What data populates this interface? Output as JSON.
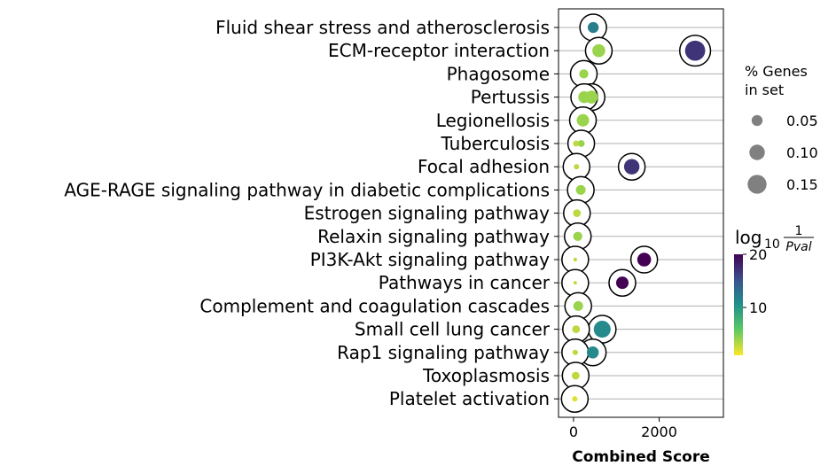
{
  "chart_data": {
    "type": "scatter",
    "xlabel": "Combined Score",
    "xlim": [
      -350,
      3500
    ],
    "xticks": [
      0,
      2000
    ],
    "xtick_labels": [
      "0",
      "2000"
    ],
    "terms": [
      "Fluid shear stress and atherosclerosis",
      "ECM-receptor interaction",
      "Phagosome",
      "Pertussis",
      "Legionellosis",
      "Tuberculosis",
      "Focal adhesion",
      "AGE-RAGE signaling pathway in diabetic complications",
      "Estrogen signaling pathway",
      "Relaxin signaling pathway",
      "PI3K-Akt signaling pathway",
      "Pathways in cancer",
      "Complement and coagulation cascades",
      "Small cell lung cancer",
      "Rap1 signaling pathway",
      "Toxoplasmosis",
      "Platelet activation"
    ],
    "points": [
      {
        "term": "Fluid shear stress and atherosclerosis",
        "x": 460,
        "pct_genes": 0.05,
        "neglog10p": 12,
        "highlighted": true
      },
      {
        "term": "ECM-receptor interaction",
        "x": 2840,
        "pct_genes": 0.17,
        "neglog10p": 17,
        "highlighted": true
      },
      {
        "term": "ECM-receptor interaction",
        "x": 590,
        "pct_genes": 0.07,
        "neglog10p": 4,
        "highlighted": true
      },
      {
        "term": "Phagosome",
        "x": 240,
        "pct_genes": 0.035,
        "neglog10p": 4,
        "highlighted": true
      },
      {
        "term": "Pertussis",
        "x": 420,
        "pct_genes": 0.07,
        "neglog10p": 4,
        "highlighted": true
      },
      {
        "term": "Pertussis",
        "x": 250,
        "pct_genes": 0.06,
        "neglog10p": 4,
        "highlighted": true
      },
      {
        "term": "Legionellosis",
        "x": 220,
        "pct_genes": 0.065,
        "neglog10p": 4,
        "highlighted": true
      },
      {
        "term": "Tuberculosis",
        "x": 180,
        "pct_genes": 0.02,
        "neglog10p": 4,
        "highlighted": true
      },
      {
        "term": "Tuberculosis",
        "x": 60,
        "pct_genes": 0.015,
        "neglog10p": 3,
        "highlighted": false
      },
      {
        "term": "Focal adhesion",
        "x": 1360,
        "pct_genes": 0.1,
        "neglog10p": 17,
        "highlighted": true
      },
      {
        "term": "Focal adhesion",
        "x": 70,
        "pct_genes": 0.012,
        "neglog10p": 3,
        "highlighted": true
      },
      {
        "term": "AGE-RAGE signaling pathway in diabetic complications",
        "x": 170,
        "pct_genes": 0.04,
        "neglog10p": 4,
        "highlighted": true
      },
      {
        "term": "Estrogen signaling pathway",
        "x": 80,
        "pct_genes": 0.025,
        "neglog10p": 3,
        "highlighted": true
      },
      {
        "term": "Relaxin signaling pathway",
        "x": 100,
        "pct_genes": 0.035,
        "neglog10p": 4,
        "highlighted": true
      },
      {
        "term": "PI3K-Akt signaling pathway",
        "x": 1650,
        "pct_genes": 0.08,
        "neglog10p": 20,
        "highlighted": true
      },
      {
        "term": "PI3K-Akt signaling pathway",
        "x": 40,
        "pct_genes": 0.006,
        "neglog10p": 3,
        "highlighted": true
      },
      {
        "term": "Pathways in cancer",
        "x": 1140,
        "pct_genes": 0.065,
        "neglog10p": 20,
        "highlighted": true
      },
      {
        "term": "Pathways in cancer",
        "x": 40,
        "pct_genes": 0.005,
        "neglog10p": 3,
        "highlighted": true
      },
      {
        "term": "Complement and coagulation cascades",
        "x": 110,
        "pct_genes": 0.04,
        "neglog10p": 4,
        "highlighted": true
      },
      {
        "term": "Small cell lung cancer",
        "x": 670,
        "pct_genes": 0.12,
        "neglog10p": 11,
        "highlighted": true
      },
      {
        "term": "Small cell lung cancer",
        "x": 60,
        "pct_genes": 0.025,
        "neglog10p": 3,
        "highlighted": true
      },
      {
        "term": "Rap1 signaling pathway",
        "x": 450,
        "pct_genes": 0.06,
        "neglog10p": 11,
        "highlighted": true
      },
      {
        "term": "Rap1 signaling pathway",
        "x": 40,
        "pct_genes": 0.012,
        "neglog10p": 3,
        "highlighted": true
      },
      {
        "term": "Toxoplasmosis",
        "x": 50,
        "pct_genes": 0.025,
        "neglog10p": 3,
        "highlighted": true
      },
      {
        "term": "Platelet activation",
        "x": 30,
        "pct_genes": 0.012,
        "neglog10p": 2,
        "highlighted": true
      }
    ],
    "size_legend": {
      "title_line1": "% Genes",
      "title_line2": "in set",
      "entries": [
        {
          "label": "0.05",
          "value": 0.05
        },
        {
          "label": "0.10",
          "value": 0.1
        },
        {
          "label": "0.15",
          "value": 0.15
        }
      ]
    },
    "colorbar": {
      "title_prefix": "log",
      "title_sub": "10",
      "title_num": "1",
      "title_den": "Pval",
      "range": [
        1,
        20
      ],
      "ticks": [
        10,
        20
      ],
      "tick_labels": [
        "10",
        "20"
      ],
      "colormap": "viridis"
    },
    "grid": "horizontal",
    "legend_placement": "right"
  }
}
